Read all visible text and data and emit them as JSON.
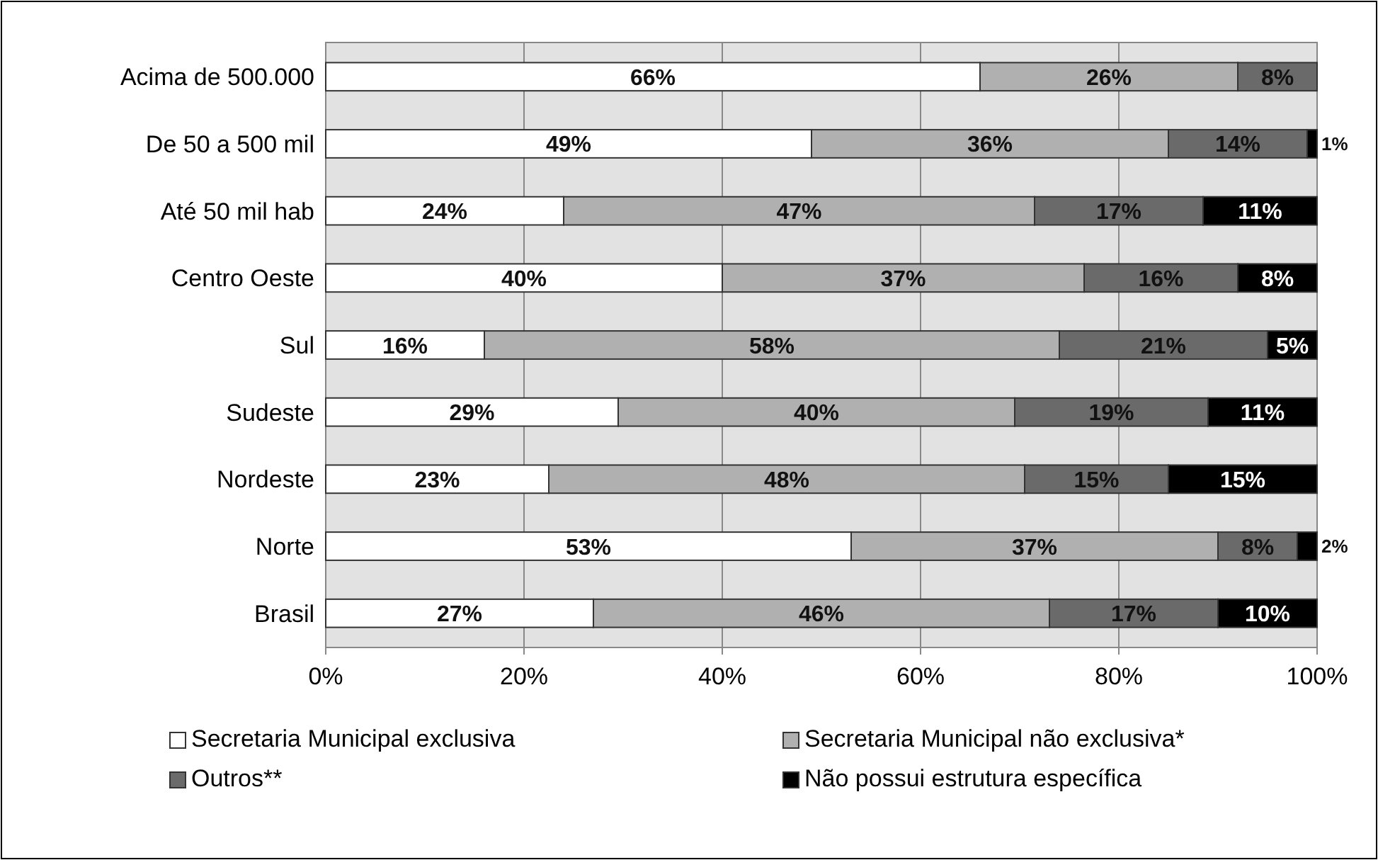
{
  "chart_data": {
    "type": "bar",
    "orientation": "horizontal",
    "stacked": true,
    "grid": "x",
    "legend": "bottom",
    "categories": [
      "Acima de 500.000",
      "De 50 a 500 mil",
      "Até 50 mil hab",
      "Centro Oeste",
      "Sul",
      "Sudeste",
      "Nordeste",
      "Norte",
      "Brasil"
    ],
    "xlim": [
      0,
      100
    ],
    "xticks": [
      {
        "value": 0,
        "label": "0%"
      },
      {
        "value": 20,
        "label": "20%"
      },
      {
        "value": 40,
        "label": "40%"
      },
      {
        "value": 60,
        "label": "60%"
      },
      {
        "value": 80,
        "label": "80%"
      },
      {
        "value": 100,
        "label": "100%"
      }
    ],
    "series": [
      {
        "name": "Secretaria Municipal exclusiva",
        "color": "#ffffff",
        "values": [
          66,
          49,
          24,
          40,
          16,
          29.5,
          22.5,
          53,
          27
        ],
        "value_labels": [
          "66%",
          "49%",
          "24%",
          "40%",
          "16%",
          "29%",
          "23%",
          "53%",
          "27%"
        ]
      },
      {
        "name": "Secretaria Municipal não exclusiva*",
        "color": "#b0b0b0",
        "values": [
          26,
          36,
          47.5,
          36.5,
          58,
          40,
          48,
          37,
          46
        ],
        "value_labels": [
          "26%",
          "36%",
          "47%",
          "37%",
          "58%",
          "40%",
          "48%",
          "37%",
          "46%"
        ]
      },
      {
        "name": "Outros**",
        "color": "#6a6a6a",
        "values": [
          8,
          14,
          17,
          15.5,
          21,
          19.5,
          14.5,
          8,
          17
        ],
        "value_labels": [
          "8%",
          "14%",
          "17%",
          "16%",
          "21%",
          "19%",
          "15%",
          "8%",
          "17%"
        ]
      },
      {
        "name": "Não possui estrutura específica",
        "color": "#000000",
        "values": [
          null,
          1,
          11.5,
          8,
          5,
          11,
          15,
          2,
          10
        ],
        "value_labels": [
          null,
          "1%",
          "11%",
          "8%",
          "5%",
          "11%",
          "15%",
          "2%",
          "10%"
        ]
      }
    ]
  }
}
